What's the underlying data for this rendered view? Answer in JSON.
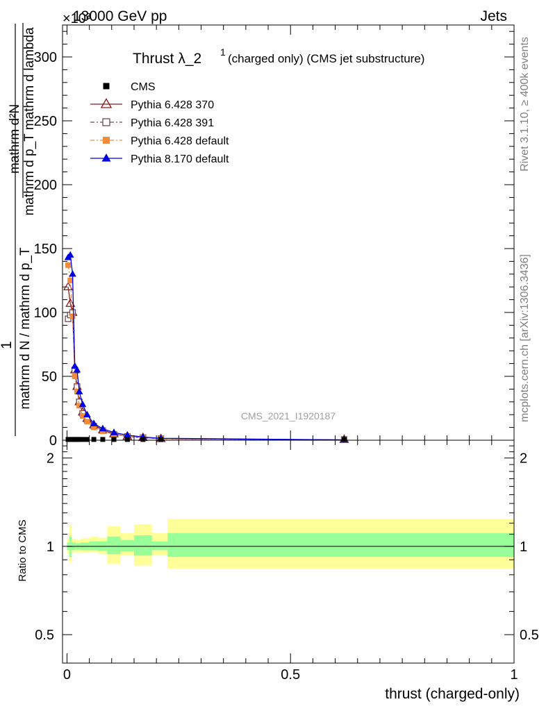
{
  "header": {
    "left": "13000 GeV pp",
    "right": "Jets",
    "exponent_label": "×10³"
  },
  "side_text": {
    "rivet": "Rivet 3.1.10, ≥ 400k events",
    "mcplots": "mcplots.cern.ch [arXiv:1306.3436]"
  },
  "chart_data": [
    {
      "type": "line",
      "title": "Thrust λ_2¹ (charged only) (CMS jet substructure)",
      "title_main": "Thrust λ_2",
      "title_sup": "1",
      "title_rest": "(charged only) (CMS jet substructure)",
      "analysis_label": "CMS_2021_I1920187",
      "ylabel_numerator": "1",
      "ylabel_denominator": "mathrm d N / mathrm d p_T",
      "ylabel_fraction_top": "mathrm d²N",
      "ylabel_fraction_bottom": "mathrm d p_T mathrm d lambda",
      "ylim": [
        0,
        325
      ],
      "xlim": [
        -0.01,
        1.0
      ],
      "yticks": [
        0,
        50,
        100,
        150,
        200,
        250,
        300
      ],
      "ytick_labels": [
        "0",
        "50",
        "100",
        "150",
        "200",
        "250",
        "300"
      ],
      "legend_position": "top-left",
      "series": [
        {
          "name": "CMS",
          "color": "#000000",
          "marker": "square",
          "x": [
            0.0025,
            0.0075,
            0.0125,
            0.0175,
            0.0225,
            0.0275,
            0.035,
            0.045,
            0.06,
            0.08,
            0.105,
            0.135,
            0.17,
            0.21,
            0.62
          ],
          "y": [
            0.6,
            0.6,
            0.6,
            0.6,
            0.6,
            0.6,
            0.6,
            0.6,
            0.6,
            0.6,
            0.6,
            0.6,
            0.6,
            0.6,
            0.6
          ]
        },
        {
          "name": "Pythia 6.428 370",
          "color": "#8b1a1a",
          "marker": "triangle-open",
          "dash": "",
          "x": [
            0.0025,
            0.0075,
            0.0125,
            0.0175,
            0.0225,
            0.0275,
            0.035,
            0.045,
            0.06,
            0.08,
            0.105,
            0.135,
            0.17,
            0.21,
            0.62
          ],
          "y": [
            120,
            107,
            100,
            55,
            42,
            30,
            22,
            17,
            12,
            8,
            5,
            3,
            2,
            1.2,
            0.2
          ]
        },
        {
          "name": "Pythia 6.428 391",
          "color": "#6b4a5a",
          "marker": "square-open",
          "dash": "6,3,2,3",
          "x": [
            0.0025,
            0.0075,
            0.0125,
            0.0175,
            0.0225,
            0.0275,
            0.035,
            0.045,
            0.06,
            0.08,
            0.105,
            0.135,
            0.17,
            0.21,
            0.62
          ],
          "y": [
            95,
            98,
            100,
            55,
            42,
            30,
            21,
            16,
            11,
            7.5,
            4.5,
            3,
            2,
            1.2,
            0.2
          ]
        },
        {
          "name": "Pythia 6.428 default",
          "color": "#f28c3c",
          "marker": "square",
          "dash": "6,3,2,3",
          "x": [
            0.0025,
            0.0075,
            0.0125,
            0.0175,
            0.0225,
            0.0275,
            0.035,
            0.045,
            0.06,
            0.08,
            0.105,
            0.135,
            0.17,
            0.21,
            0.62
          ],
          "y": [
            137,
            125,
            97,
            50,
            38,
            27,
            19,
            14.5,
            10,
            7,
            4.5,
            3,
            2,
            1.2,
            0.2
          ]
        },
        {
          "name": "Pythia 8.170 default",
          "color": "#0000e0",
          "marker": "triangle",
          "dash": "",
          "x": [
            0.0025,
            0.0075,
            0.0125,
            0.0175,
            0.0225,
            0.0275,
            0.035,
            0.045,
            0.06,
            0.08,
            0.105,
            0.135,
            0.17,
            0.21,
            0.62
          ],
          "y": [
            143,
            145,
            130,
            58,
            55,
            38,
            28,
            20,
            13,
            9,
            6,
            4,
            2.5,
            1.5,
            0.25
          ]
        }
      ]
    },
    {
      "type": "area",
      "ylabel": "Ratio to CMS",
      "xlabel": "thrust (charged-only)",
      "ylim": [
        0.4,
        2.3
      ],
      "log_y": true,
      "xlim": [
        -0.01,
        1.0
      ],
      "yticks": [
        0.5,
        1,
        2
      ],
      "ytick_labels": [
        "0.5",
        "1",
        "2"
      ],
      "xticks": [
        0,
        0.5,
        1
      ],
      "xtick_labels": [
        "0",
        "0.5",
        "1"
      ],
      "bins": [
        {
          "x0": 0.0,
          "x1": 0.005,
          "stat": [
            0.97,
            1.03
          ],
          "total": [
            0.94,
            1.06
          ]
        },
        {
          "x0": 0.005,
          "x1": 0.01,
          "stat": [
            0.92,
            1.08
          ],
          "total": [
            0.88,
            1.18
          ]
        },
        {
          "x0": 0.01,
          "x1": 0.02,
          "stat": [
            0.97,
            1.03
          ],
          "total": [
            0.95,
            1.06
          ]
        },
        {
          "x0": 0.02,
          "x1": 0.03,
          "stat": [
            0.975,
            1.025
          ],
          "total": [
            0.955,
            1.05
          ]
        },
        {
          "x0": 0.03,
          "x1": 0.05,
          "stat": [
            0.97,
            1.03
          ],
          "total": [
            0.95,
            1.065
          ]
        },
        {
          "x0": 0.05,
          "x1": 0.07,
          "stat": [
            0.97,
            1.04
          ],
          "total": [
            0.955,
            1.08
          ]
        },
        {
          "x0": 0.07,
          "x1": 0.09,
          "stat": [
            0.965,
            1.04
          ],
          "total": [
            0.94,
            1.07
          ]
        },
        {
          "x0": 0.09,
          "x1": 0.12,
          "stat": [
            0.94,
            1.08
          ],
          "total": [
            0.87,
            1.17
          ]
        },
        {
          "x0": 0.12,
          "x1": 0.15,
          "stat": [
            0.96,
            1.05
          ],
          "total": [
            0.93,
            1.11
          ]
        },
        {
          "x0": 0.15,
          "x1": 0.19,
          "stat": [
            0.93,
            1.09
          ],
          "total": [
            0.86,
            1.19
          ]
        },
        {
          "x0": 0.19,
          "x1": 0.225,
          "stat": [
            0.97,
            1.04
          ],
          "total": [
            0.93,
            1.11
          ]
        },
        {
          "x0": 0.225,
          "x1": 1.0,
          "stat": [
            0.92,
            1.11
          ],
          "total": [
            0.84,
            1.24
          ]
        }
      ]
    }
  ]
}
